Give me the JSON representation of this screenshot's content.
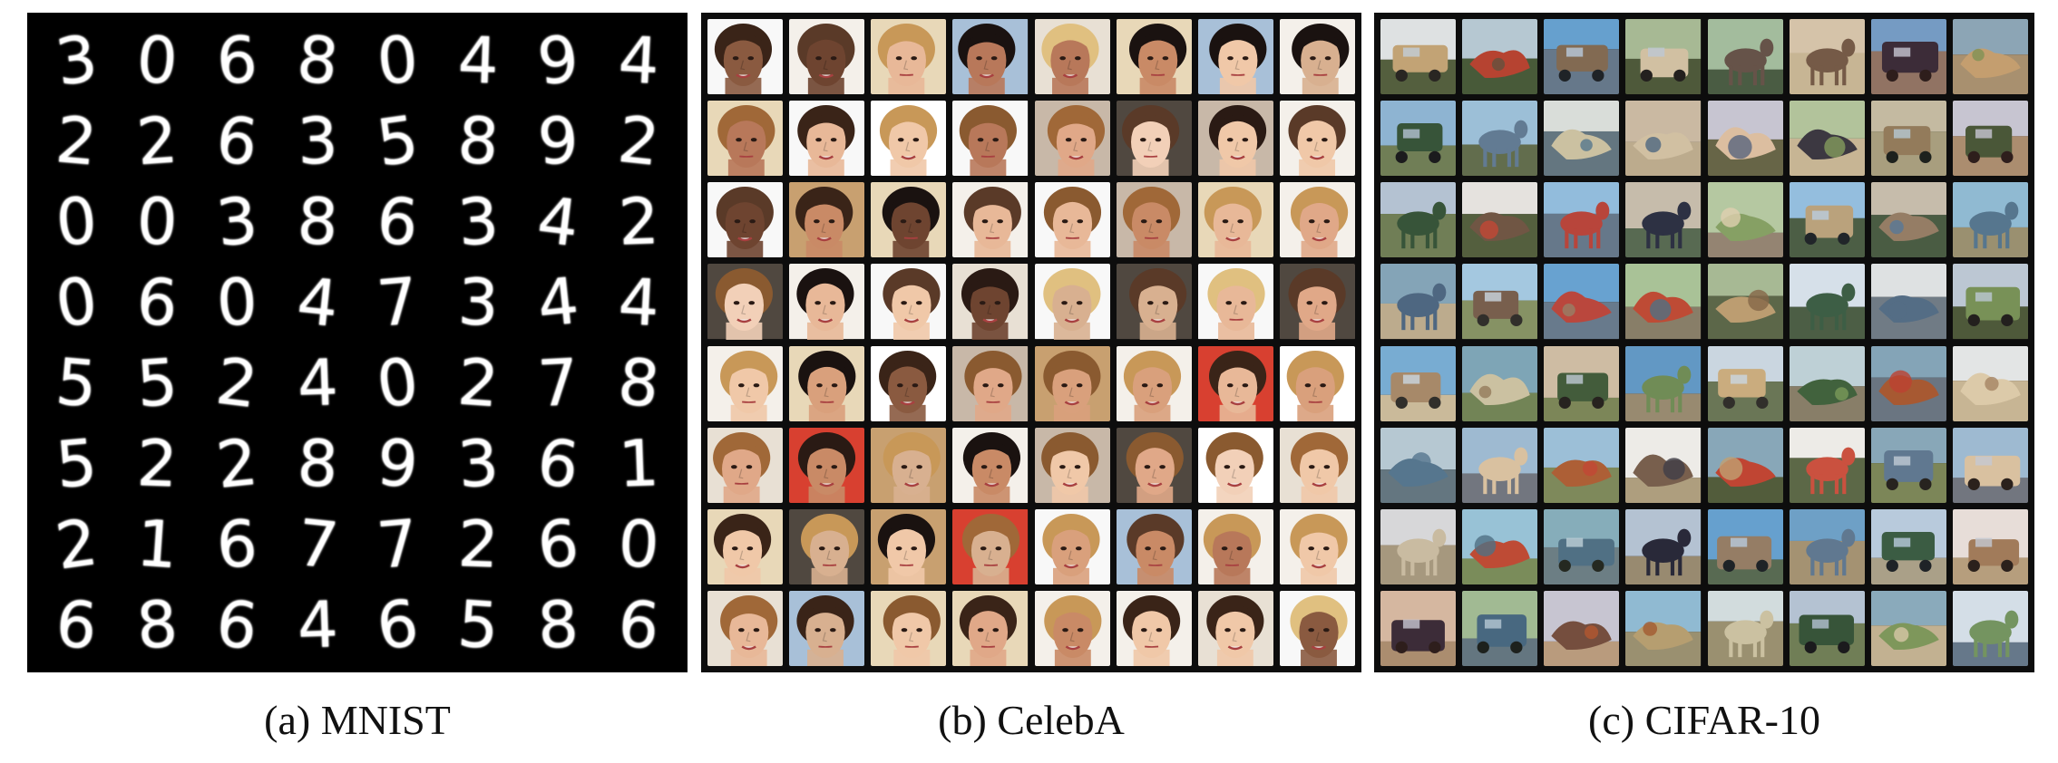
{
  "captions": {
    "mnist": "(a) MNIST",
    "celeba": "(b) CelebA",
    "cifar": "(c) CIFAR-10"
  },
  "mnist_digits": [
    [
      "3",
      "0",
      "6",
      "8",
      "0",
      "4",
      "9",
      "4"
    ],
    [
      "2",
      "2",
      "6",
      "3",
      "5",
      "8",
      "9",
      "2"
    ],
    [
      "0",
      "0",
      "3",
      "8",
      "6",
      "3",
      "4",
      "2"
    ],
    [
      "0",
      "6",
      "0",
      "4",
      "7",
      "3",
      "4",
      "4"
    ],
    [
      "5",
      "5",
      "2",
      "4",
      "0",
      "2",
      "7",
      "8"
    ],
    [
      "5",
      "2",
      "2",
      "8",
      "9",
      "3",
      "6",
      "1"
    ],
    [
      "2",
      "1",
      "6",
      "7",
      "7",
      "2",
      "6",
      "0"
    ],
    [
      "6",
      "8",
      "6",
      "4",
      "6",
      "5",
      "8",
      "6"
    ]
  ],
  "celeba_palette": {
    "skin": [
      "#e8b898",
      "#d9a07c",
      "#c98a66",
      "#f0c8a8",
      "#b8785a",
      "#8a5a40",
      "#f2d0b8",
      "#e0a888",
      "#6e4430",
      "#d8b090"
    ],
    "hair": [
      "#3a2418",
      "#1a1210",
      "#8a5a30",
      "#c89858",
      "#5a3a28",
      "#2a1a14",
      "#a06838",
      "#e0c080"
    ],
    "bg": [
      "#f4f0ea",
      "#e8e0d4",
      "#c8b8a8",
      "#d84030",
      "#f8f8f8",
      "#a8c0d8",
      "#e8d8b8",
      "#504840",
      "#c8a070",
      "#ffffff"
    ]
  },
  "cifar_palette": {
    "sky": [
      "#9cc8e8",
      "#c8d8e8",
      "#e8eef4",
      "#6aa8d8",
      "#f0f0f0",
      "#b0c8a0",
      "#d8c8b0",
      "#88b0c8"
    ],
    "object": [
      "#8a6a4a",
      "#5a7a9a",
      "#c84030",
      "#3a5a3a",
      "#6a5040",
      "#a08060",
      "#2a2a3a",
      "#c8a878",
      "#7a9a5a",
      "#4a6a8a",
      "#b05a30",
      "#e0d0b0"
    ],
    "ground": [
      "#7a8a5a",
      "#a89878",
      "#5a6a4a",
      "#8a7a6a",
      "#c8b898",
      "#6a7a8a",
      "#4a5a3a",
      "#b8a888"
    ]
  }
}
